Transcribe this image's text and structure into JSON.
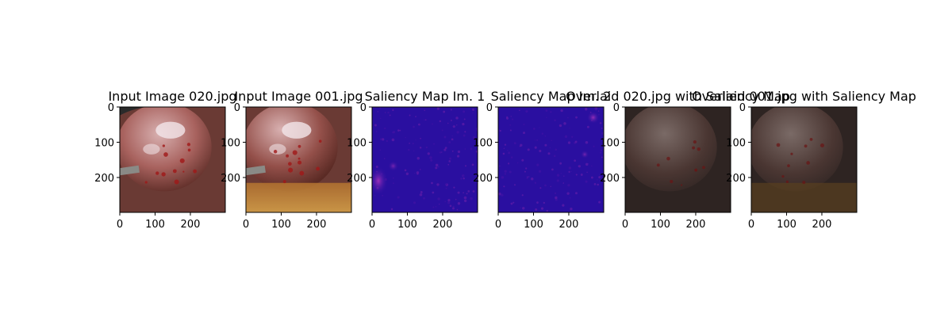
{
  "colors": {
    "background": "#ffffff",
    "axis": "#000000",
    "saliency_base": "#2a0fa0",
    "saliency_hot": "#c23ac0",
    "tissue_light": "#d8b0b0",
    "tissue_dark": "#5a2a24",
    "fat_yellow": "#d6a24a",
    "overlay_dark": "#2e2422"
  },
  "chart_data": [
    {
      "type": "image",
      "title": "Input Image 020.jpg",
      "image_kind": "surgical-photo-1",
      "xlim": [
        0,
        299
      ],
      "ylim": [
        299,
        0
      ],
      "xticks": [
        0,
        100,
        200
      ],
      "yticks": [
        0,
        100,
        200
      ]
    },
    {
      "type": "image",
      "title": "Input Image 001.jpg",
      "image_kind": "surgical-photo-2",
      "xlim": [
        0,
        299
      ],
      "ylim": [
        299,
        0
      ],
      "xticks": [
        0,
        100,
        200
      ],
      "yticks": [
        0,
        100,
        200
      ]
    },
    {
      "type": "heatmap",
      "title": "Saliency Map Im. 1",
      "image_kind": "saliency-1",
      "colormap": "plasma",
      "xlim": [
        0,
        299
      ],
      "ylim": [
        299,
        0
      ],
      "xticks": [
        0,
        100,
        200
      ],
      "yticks": [
        0,
        100,
        200
      ]
    },
    {
      "type": "heatmap",
      "title": "Saliency Map Im. 2",
      "image_kind": "saliency-2",
      "colormap": "plasma",
      "xlim": [
        0,
        299
      ],
      "ylim": [
        299,
        0
      ],
      "xticks": [
        0,
        100,
        200
      ],
      "yticks": [
        0,
        100,
        200
      ]
    },
    {
      "type": "image",
      "title": "Overlaid 020.jpg with Saliency Map",
      "image_kind": "overlay-1",
      "xlim": [
        0,
        299
      ],
      "ylim": [
        299,
        0
      ],
      "xticks": [
        0,
        100,
        200
      ],
      "yticks": [
        0,
        100,
        200
      ]
    },
    {
      "type": "image",
      "title": "Overlaid 001.jpg with Saliency Map",
      "image_kind": "overlay-2",
      "xlim": [
        0,
        299
      ],
      "ylim": [
        299,
        0
      ],
      "xticks": [
        0,
        100,
        200
      ],
      "yticks": [
        0,
        100,
        200
      ]
    }
  ]
}
